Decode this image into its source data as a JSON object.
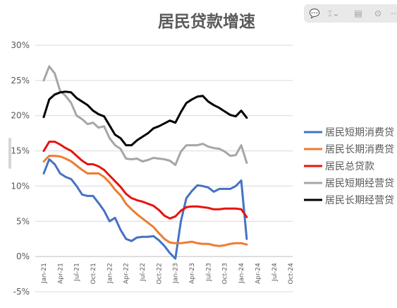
{
  "chart_data": {
    "type": "line",
    "title": "居民贷款增速",
    "x": [
      "Jan-21",
      "Feb-21",
      "Mar-21",
      "Apr-21",
      "May-21",
      "Jun-21",
      "Jul-21",
      "Aug-21",
      "Sep-21",
      "Oct-21",
      "Nov-21",
      "Dec-21",
      "Jan-22",
      "Feb-22",
      "Mar-22",
      "Apr-22",
      "May-22",
      "Jun-22",
      "Jul-22",
      "Aug-22",
      "Sep-22",
      "Oct-22",
      "Nov-22",
      "Dec-22",
      "Jan-23",
      "Feb-23",
      "Mar-23",
      "Apr-23",
      "May-23",
      "Jun-23",
      "Jul-23",
      "Aug-23",
      "Sep-23",
      "Oct-23",
      "Nov-23",
      "Dec-23",
      "Jan-24",
      "Feb-24"
    ],
    "x_tick_labels": [
      "Jan-21",
      "Apr-21",
      "Jul-21",
      "Oct-21",
      "Jan-22",
      "Apr-22",
      "Jul-22",
      "Oct-22",
      "Jan-23",
      "Apr-23",
      "Jul-23",
      "Oct-23",
      "Jan-24",
      "Apr-24",
      "Jul-24",
      "Oct-24"
    ],
    "y_tick_labels": [
      "30%",
      "25%",
      "20%",
      "15%",
      "10%",
      "5%",
      "0%",
      "-5%"
    ],
    "ylim": [
      -5,
      30
    ],
    "y_unit": "%",
    "grid": "horizontal",
    "legend_position": "right",
    "series": [
      {
        "name": "居民短期消费贷",
        "color": "#4472C4",
        "values": [
          11.8,
          13.8,
          13.1,
          11.8,
          11.3,
          11.0,
          10.0,
          8.8,
          8.6,
          8.6,
          7.6,
          6.5,
          5.0,
          5.5,
          3.8,
          2.5,
          2.2,
          2.7,
          2.8,
          2.8,
          2.9,
          2.3,
          1.5,
          0.5,
          -0.3,
          5.0,
          8.3,
          9.3,
          10.1,
          10.0,
          9.8,
          9.2,
          9.6,
          9.6,
          9.6,
          10.0,
          10.8,
          2.5
        ]
      },
      {
        "name": "居民长期消费贷",
        "color": "#ED7D31",
        "values": [
          13.5,
          14.3,
          14.3,
          14.2,
          13.9,
          13.5,
          12.9,
          12.3,
          11.8,
          11.8,
          11.8,
          11.3,
          10.5,
          9.5,
          8.7,
          7.5,
          6.7,
          6.0,
          5.4,
          4.8,
          4.2,
          3.3,
          2.5,
          2.0,
          1.9,
          1.9,
          2.0,
          2.1,
          1.9,
          1.8,
          1.8,
          1.6,
          1.5,
          1.6,
          1.8,
          1.9,
          1.9,
          1.7
        ]
      },
      {
        "name": "居民总贷款",
        "color": "#E8130F",
        "values": [
          15.0,
          16.3,
          16.3,
          15.9,
          15.4,
          15.0,
          14.3,
          13.6,
          13.1,
          13.1,
          12.8,
          12.3,
          11.5,
          10.7,
          9.9,
          8.9,
          8.3,
          8.0,
          7.8,
          7.5,
          7.2,
          6.6,
          5.8,
          5.4,
          5.7,
          6.5,
          7.0,
          7.1,
          7.1,
          7.0,
          6.9,
          6.7,
          6.7,
          6.8,
          6.8,
          6.8,
          6.7,
          5.6
        ]
      },
      {
        "name": "居民短期经营贷",
        "color": "#A6A6A6",
        "values": [
          25.0,
          27.0,
          26.0,
          23.5,
          22.8,
          21.8,
          20.0,
          19.5,
          18.8,
          19.0,
          18.3,
          18.5,
          16.8,
          15.8,
          15.3,
          13.9,
          13.8,
          13.9,
          13.5,
          13.7,
          14.0,
          13.9,
          13.8,
          13.6,
          13.0,
          14.9,
          15.8,
          15.8,
          15.8,
          16.0,
          15.6,
          15.4,
          15.3,
          14.9,
          14.3,
          14.4,
          15.8,
          13.3
        ]
      },
      {
        "name": "居民长期经营贷",
        "color": "#000000",
        "values": [
          19.8,
          22.3,
          23.0,
          23.3,
          23.4,
          23.3,
          22.5,
          22.0,
          21.5,
          20.7,
          20.2,
          19.9,
          18.6,
          17.3,
          16.8,
          15.8,
          15.8,
          16.5,
          17.0,
          17.5,
          18.2,
          18.5,
          18.9,
          19.3,
          19.0,
          20.5,
          21.8,
          22.3,
          22.7,
          22.8,
          22.0,
          21.5,
          21.1,
          20.6,
          20.1,
          19.9,
          20.7,
          19.7
        ]
      }
    ]
  },
  "toolbar": [
    {
      "name": "comment-icon",
      "glyph": "💬"
    },
    {
      "name": "highlight-icon",
      "glyph": "⌶⌄"
    },
    {
      "name": "clip-icon",
      "glyph": "▤"
    },
    {
      "name": "download-icon",
      "glyph": "⊙"
    },
    {
      "name": "more-icon",
      "glyph": "⋯"
    }
  ]
}
